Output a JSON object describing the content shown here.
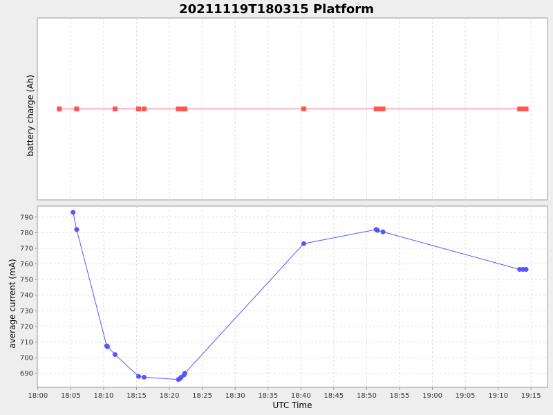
{
  "title": "20211119T180315 Platform",
  "chart_data": [
    {
      "type": "line",
      "ylabel": "battery charge (Ah)",
      "xlabel": "",
      "grid": true,
      "yticks": [],
      "series": [
        {
          "color": "#ff5555",
          "marker": "square",
          "x": [
            "18:03:15",
            "18:05:53",
            "18:11:44",
            "18:15:19",
            "18:16:09",
            "18:21:22",
            "18:21:42",
            "18:22:01",
            "18:22:21",
            "18:40:26",
            "18:51:27",
            "18:51:39",
            "18:52:10",
            "18:52:29",
            "19:13:16",
            "19:13:46",
            "19:14:15"
          ],
          "values": [
            0,
            0,
            0,
            0,
            0,
            0,
            0,
            0,
            0,
            0,
            0,
            0,
            0,
            0,
            0,
            0,
            0
          ]
        }
      ]
    },
    {
      "type": "line",
      "ylabel": "average current (mA)",
      "xlabel": "UTC Time",
      "grid": true,
      "xlim": [
        "17:59:55",
        "19:17:30"
      ],
      "ylim": [
        681,
        797
      ],
      "yticks": [
        690,
        700,
        710,
        720,
        730,
        740,
        750,
        760,
        770,
        780,
        790
      ],
      "xticks": [
        "18:00",
        "18:05",
        "18:10",
        "18:15",
        "18:20",
        "18:25",
        "18:30",
        "18:35",
        "18:40",
        "18:45",
        "18:50",
        "18:55",
        "19:00",
        "19:05",
        "19:10",
        "19:15"
      ],
      "series": [
        {
          "color": "#5555ff",
          "marker": "circle",
          "x": [
            "18:05:21",
            "18:05:54",
            "18:10:28",
            "18:10:35",
            "18:11:44",
            "18:15:19",
            "18:16:09",
            "18:21:22",
            "18:21:35",
            "18:21:48",
            "18:22:14",
            "18:22:21",
            "18:40:26",
            "18:51:27",
            "18:51:39",
            "18:52:29",
            "19:13:16",
            "19:13:46",
            "19:14:15"
          ],
          "values": [
            793,
            782,
            707.5,
            707,
            702,
            688,
            687.5,
            686,
            686.5,
            687.5,
            689,
            690,
            773,
            782,
            781.5,
            780.5,
            756.5,
            756.5,
            756.5
          ]
        }
      ]
    }
  ]
}
